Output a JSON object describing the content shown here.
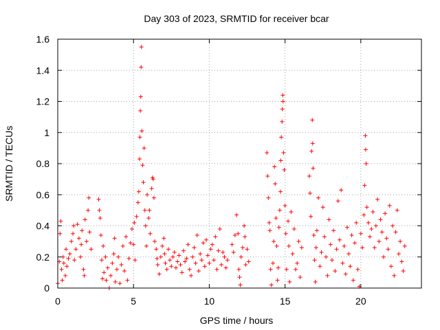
{
  "chart_data": {
    "type": "scatter",
    "title": "Day 303 of 2023, SRMTID for receiver bcar",
    "xlabel": "GPS time / hours",
    "ylabel": "SRMTID / TECUs",
    "xlim": [
      0,
      24
    ],
    "ylim": [
      0,
      1.6
    ],
    "x_ticks": [
      0,
      5,
      10,
      15,
      20
    ],
    "x_tick_labels": [
      "0",
      "5",
      "10",
      "15",
      "20"
    ],
    "y_ticks": [
      0,
      0.2,
      0.4,
      0.6,
      0.8,
      1.0,
      1.2,
      1.4,
      1.6
    ],
    "y_tick_labels": [
      "0",
      "0.2",
      "0.4",
      "0.6",
      "0.8",
      "1",
      "1.2",
      "1.4",
      "1.6"
    ],
    "grid": true,
    "marker": "+",
    "marker_color": "#ff0000",
    "series": [
      {
        "name": "SRMTID",
        "points": [
          [
            0.0,
            0.03
          ],
          [
            0.1,
            0.17
          ],
          [
            0.15,
            0.35
          ],
          [
            0.2,
            0.43
          ],
          [
            0.25,
            0.12
          ],
          [
            0.3,
            0.05
          ],
          [
            0.35,
            0.2
          ],
          [
            0.4,
            0.16
          ],
          [
            0.5,
            0.08
          ],
          [
            0.55,
            0.25
          ],
          [
            0.6,
            0.14
          ],
          [
            0.7,
            0.19
          ],
          [
            0.8,
            0.22
          ],
          [
            0.9,
            0.3
          ],
          [
            1.0,
            0.35
          ],
          [
            1.05,
            0.4
          ],
          [
            1.1,
            0.18
          ],
          [
            1.2,
            0.25
          ],
          [
            1.3,
            0.41
          ],
          [
            1.4,
            0.32
          ],
          [
            1.5,
            0.2
          ],
          [
            1.55,
            0.28
          ],
          [
            1.6,
            0.37
          ],
          [
            1.7,
            0.12
          ],
          [
            1.75,
            0.08
          ],
          [
            1.8,
            0.44
          ],
          [
            1.9,
            0.3
          ],
          [
            2.0,
            0.5
          ],
          [
            2.05,
            0.58
          ],
          [
            2.1,
            0.36
          ],
          [
            2.2,
            0.25
          ],
          [
            2.7,
            0.57
          ],
          [
            2.75,
            0.5
          ],
          [
            2.8,
            0.45
          ],
          [
            2.85,
            0.34
          ],
          [
            2.9,
            0.18
          ],
          [
            2.95,
            0.06
          ],
          [
            3.0,
            0.27
          ],
          [
            3.05,
            0.1
          ],
          [
            3.15,
            0.2
          ],
          [
            3.2,
            0.05
          ],
          [
            3.3,
            0.13
          ],
          [
            3.4,
            0.0
          ],
          [
            3.5,
            0.08
          ],
          [
            3.6,
            0.16
          ],
          [
            3.7,
            0.22
          ],
          [
            3.75,
            0.32
          ],
          [
            3.8,
            0.04
          ],
          [
            3.9,
            0.12
          ],
          [
            4.0,
            0.2
          ],
          [
            4.1,
            0.03
          ],
          [
            4.2,
            0.15
          ],
          [
            4.3,
            0.27
          ],
          [
            4.4,
            0.11
          ],
          [
            4.5,
            0.33
          ],
          [
            4.6,
            0.05
          ],
          [
            4.7,
            0.19
          ],
          [
            4.8,
            0.29
          ],
          [
            4.9,
            0.38
          ],
          [
            5.0,
            0.28
          ],
          [
            5.05,
            0.42
          ],
          [
            5.1,
            0.18
          ],
          [
            5.2,
            0.46
          ],
          [
            5.3,
            0.55
          ],
          [
            5.35,
            0.62
          ],
          [
            5.4,
            0.83
          ],
          [
            5.42,
            0.97
          ],
          [
            5.45,
            1.14
          ],
          [
            5.48,
            1.23
          ],
          [
            5.5,
            1.42
          ],
          [
            5.52,
            1.55
          ],
          [
            5.55,
            1.01
          ],
          [
            5.6,
            0.79
          ],
          [
            5.65,
            0.68
          ],
          [
            5.7,
            0.9
          ],
          [
            5.75,
            0.5
          ],
          [
            5.8,
            0.4
          ],
          [
            5.85,
            0.27
          ],
          [
            5.9,
            0.6
          ],
          [
            6.0,
            0.45
          ],
          [
            6.05,
            0.5
          ],
          [
            6.1,
            0.35
          ],
          [
            6.2,
            0.64
          ],
          [
            6.25,
            0.71
          ],
          [
            6.3,
            0.7
          ],
          [
            6.35,
            0.58
          ],
          [
            6.4,
            0.3
          ],
          [
            6.5,
            0.25
          ],
          [
            6.55,
            0.19
          ],
          [
            6.6,
            0.15
          ],
          [
            6.7,
            0.09
          ],
          [
            6.8,
            0.2
          ],
          [
            6.9,
            0.27
          ],
          [
            7.0,
            0.32
          ],
          [
            7.05,
            0.22
          ],
          [
            7.1,
            0.16
          ],
          [
            7.2,
            0.12
          ],
          [
            7.3,
            0.25
          ],
          [
            7.4,
            0.18
          ],
          [
            7.5,
            0.14
          ],
          [
            7.6,
            0.2
          ],
          [
            7.7,
            0.23
          ],
          [
            7.8,
            0.13
          ],
          [
            7.9,
            0.17
          ],
          [
            8.0,
            0.21
          ],
          [
            8.1,
            0.15
          ],
          [
            8.2,
            0.1
          ],
          [
            8.3,
            0.24
          ],
          [
            8.4,
            0.17
          ],
          [
            8.5,
            0.19
          ],
          [
            8.6,
            0.28
          ],
          [
            8.7,
            0.12
          ],
          [
            8.8,
            0.08
          ],
          [
            8.9,
            0.2
          ],
          [
            9.0,
            0.26
          ],
          [
            9.1,
            0.16
          ],
          [
            9.2,
            0.34
          ],
          [
            9.3,
            0.11
          ],
          [
            9.4,
            0.22
          ],
          [
            9.5,
            0.18
          ],
          [
            9.6,
            0.29
          ],
          [
            9.7,
            0.14
          ],
          [
            9.8,
            0.31
          ],
          [
            9.9,
            0.21
          ],
          [
            10.0,
            0.16
          ],
          [
            10.1,
            0.25
          ],
          [
            10.2,
            0.28
          ],
          [
            10.3,
            0.18
          ],
          [
            10.4,
            0.33
          ],
          [
            10.5,
            0.12
          ],
          [
            10.6,
            0.24
          ],
          [
            10.7,
            0.38
          ],
          [
            10.8,
            0.15
          ],
          [
            10.9,
            0.23
          ],
          [
            11.0,
            0.2
          ],
          [
            11.1,
            0.13
          ],
          [
            11.2,
            0.18
          ],
          [
            11.5,
            0.28
          ],
          [
            11.6,
            0.23
          ],
          [
            11.7,
            0.34
          ],
          [
            11.8,
            0.47
          ],
          [
            11.9,
            0.35
          ],
          [
            11.95,
            0.12
          ],
          [
            12.0,
            0.07
          ],
          [
            12.05,
            0.02
          ],
          [
            12.1,
            0.2
          ],
          [
            12.2,
            0.26
          ],
          [
            12.3,
            0.4
          ],
          [
            12.35,
            0.33
          ],
          [
            12.4,
            0.15
          ],
          [
            12.5,
            0.25
          ],
          [
            12.6,
            0.17
          ],
          [
            13.8,
            0.87
          ],
          [
            13.85,
            0.72
          ],
          [
            13.9,
            0.58
          ],
          [
            13.95,
            0.42
          ],
          [
            14.0,
            0.37
          ],
          [
            14.05,
            0.12
          ],
          [
            14.1,
            0.02
          ],
          [
            14.2,
            0.16
          ],
          [
            14.25,
            0.3
          ],
          [
            14.3,
            0.78
          ],
          [
            14.35,
            0.67
          ],
          [
            14.4,
            0.45
          ],
          [
            14.45,
            0.27
          ],
          [
            14.5,
            0.05
          ],
          [
            14.55,
            0.13
          ],
          [
            14.6,
            0.39
          ],
          [
            14.65,
            0.5
          ],
          [
            14.7,
            0.62
          ],
          [
            14.72,
            0.82
          ],
          [
            14.75,
            0.97
          ],
          [
            14.8,
            1.07
          ],
          [
            14.82,
            1.15
          ],
          [
            14.85,
            1.24
          ],
          [
            14.87,
            1.2
          ],
          [
            14.9,
            0.87
          ],
          [
            14.95,
            0.76
          ],
          [
            15.0,
            0.53
          ],
          [
            15.05,
            0.35
          ],
          [
            15.1,
            0.12
          ],
          [
            15.2,
            0.43
          ],
          [
            15.25,
            0.27
          ],
          [
            15.3,
            0.04
          ],
          [
            15.4,
            0.49
          ],
          [
            15.5,
            0.22
          ],
          [
            15.6,
            0.38
          ],
          [
            15.7,
            0.12
          ],
          [
            15.8,
            0.16
          ],
          [
            15.9,
            0.3
          ],
          [
            16.0,
            0.07
          ],
          [
            16.1,
            0.26
          ],
          [
            16.6,
            0.72
          ],
          [
            16.65,
            0.61
          ],
          [
            16.7,
            0.46
          ],
          [
            16.75,
            0.88
          ],
          [
            16.8,
            1.08
          ],
          [
            16.82,
            0.93
          ],
          [
            16.85,
            0.77
          ],
          [
            16.9,
            0.34
          ],
          [
            16.95,
            0.18
          ],
          [
            17.0,
            0.04
          ],
          [
            17.05,
            0.26
          ],
          [
            17.1,
            0.37
          ],
          [
            17.2,
            0.58
          ],
          [
            17.3,
            0.14
          ],
          [
            17.4,
            0.23
          ],
          [
            17.5,
            0.52
          ],
          [
            17.6,
            0.33
          ],
          [
            17.7,
            0.2
          ],
          [
            17.8,
            0.08
          ],
          [
            17.9,
            0.44
          ],
          [
            18.0,
            0.28
          ],
          [
            18.1,
            0.18
          ],
          [
            18.2,
            0.37
          ],
          [
            18.3,
            0.11
          ],
          [
            18.4,
            0.25
          ],
          [
            18.5,
            0.56
          ],
          [
            18.6,
            0.31
          ],
          [
            18.7,
            0.63
          ],
          [
            18.8,
            0.16
          ],
          [
            18.9,
            0.27
          ],
          [
            19.0,
            0.09
          ],
          [
            19.1,
            0.39
          ],
          [
            19.2,
            0.22
          ],
          [
            19.3,
            0.14
          ],
          [
            19.4,
            0.34
          ],
          [
            19.5,
            0.05
          ],
          [
            19.6,
            0.29
          ],
          [
            19.7,
            0.42
          ],
          [
            19.8,
            0.12
          ],
          [
            19.9,
            0.01
          ],
          [
            20.0,
            0.35
          ],
          [
            20.1,
            0.26
          ],
          [
            20.2,
            0.47
          ],
          [
            20.25,
            0.66
          ],
          [
            20.3,
            0.98
          ],
          [
            20.32,
            0.89
          ],
          [
            20.35,
            0.8
          ],
          [
            20.4,
            0.52
          ],
          [
            20.5,
            0.42
          ],
          [
            20.6,
            0.33
          ],
          [
            20.7,
            0.38
          ],
          [
            20.8,
            0.49
          ],
          [
            20.9,
            0.26
          ],
          [
            21.0,
            0.4
          ],
          [
            21.1,
            0.57
          ],
          [
            21.2,
            0.3
          ],
          [
            21.3,
            0.44
          ],
          [
            21.4,
            0.36
          ],
          [
            21.5,
            0.2
          ],
          [
            21.6,
            0.48
          ],
          [
            21.7,
            0.32
          ],
          [
            21.8,
            0.25
          ],
          [
            21.9,
            0.53
          ],
          [
            22.0,
            0.14
          ],
          [
            22.1,
            0.4
          ],
          [
            22.2,
            0.08
          ],
          [
            22.3,
            0.36
          ],
          [
            22.4,
            0.5
          ],
          [
            22.5,
            0.22
          ],
          [
            22.6,
            0.3
          ],
          [
            22.7,
            0.17
          ],
          [
            22.8,
            0.11
          ],
          [
            22.9,
            0.27
          ]
        ]
      }
    ]
  }
}
